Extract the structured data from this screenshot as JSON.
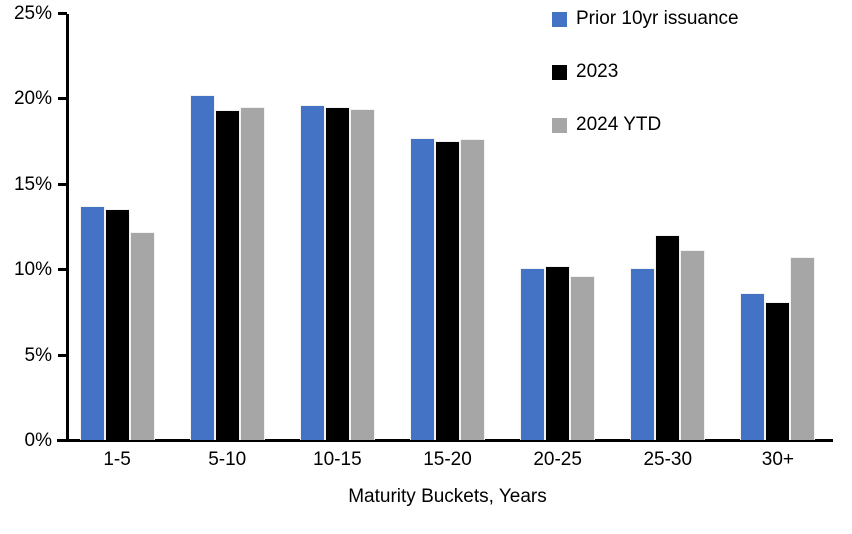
{
  "chart_data": {
    "type": "bar",
    "title": "",
    "categories": [
      "1-5",
      "5-10",
      "10-15",
      "15-20",
      "20-25",
      "25-30",
      "30+"
    ],
    "series": [
      {
        "name": "Prior 10yr issuance",
        "color": "#4472C4",
        "values": [
          13.7,
          20.2,
          19.6,
          17.7,
          10.1,
          10.1,
          8.6
        ]
      },
      {
        "name": "2023",
        "color": "#000000",
        "values": [
          13.5,
          19.3,
          19.5,
          17.5,
          10.2,
          12.0,
          8.1
        ]
      },
      {
        "name": "2024 YTD",
        "color": "#A6A6A6",
        "values": [
          12.2,
          19.5,
          19.4,
          17.6,
          9.6,
          11.1,
          10.7
        ]
      }
    ],
    "xlabel": "Maturity Buckets, Years",
    "ylabel": "",
    "ylim": [
      0,
      25
    ],
    "ytick_step": 5,
    "ytick_labels": [
      "0%",
      "5%",
      "10%",
      "15%",
      "20%",
      "25%"
    ],
    "grid": false,
    "legend_position": "top-right",
    "axis_color": "#000000",
    "background_color": "#FFFFFF"
  }
}
